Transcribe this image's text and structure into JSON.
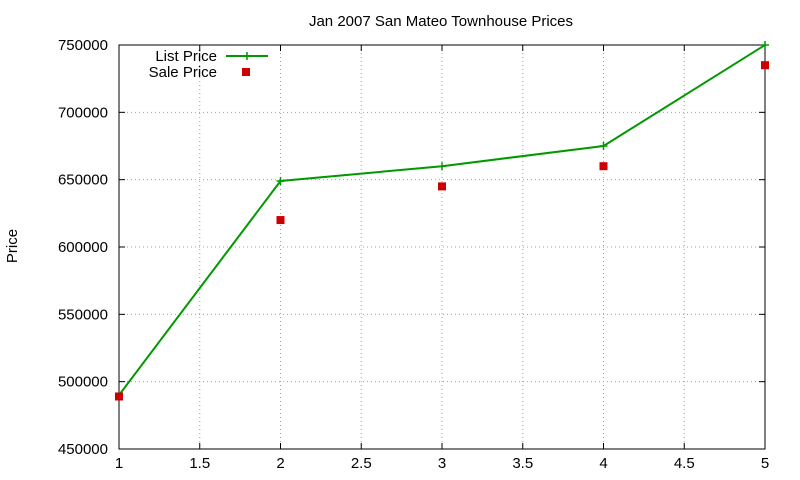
{
  "chart_data": {
    "type": "line",
    "title": "Jan 2007 San Mateo Townhouse Prices",
    "xlabel": "",
    "ylabel": "Price",
    "xlim": [
      1,
      5
    ],
    "ylim": [
      450000,
      750000
    ],
    "x_ticks": [
      1,
      1.5,
      2,
      2.5,
      3,
      3.5,
      4,
      4.5,
      5
    ],
    "x_tick_labels": [
      "1",
      "1.5",
      "2",
      "2.5",
      "3",
      "3.5",
      "4",
      "4.5",
      "5"
    ],
    "y_ticks": [
      450000,
      500000,
      550000,
      600000,
      650000,
      700000,
      750000
    ],
    "y_tick_labels": [
      "450000",
      "500000",
      "550000",
      "600000",
      "650000",
      "700000",
      "750000"
    ],
    "grid": true,
    "legend_position": "top-left",
    "series": [
      {
        "name": "List Price",
        "style": "linespoints",
        "marker": "plus",
        "color": "#009900",
        "x": [
          1,
          2,
          3,
          4,
          5
        ],
        "y": [
          490000,
          649000,
          660000,
          675000,
          750000
        ]
      },
      {
        "name": "Sale Price",
        "style": "points",
        "marker": "square",
        "color": "#cc0000",
        "x": [
          1,
          2,
          3,
          4,
          5
        ],
        "y": [
          489000,
          620000,
          645000,
          660000,
          735000
        ]
      }
    ]
  }
}
